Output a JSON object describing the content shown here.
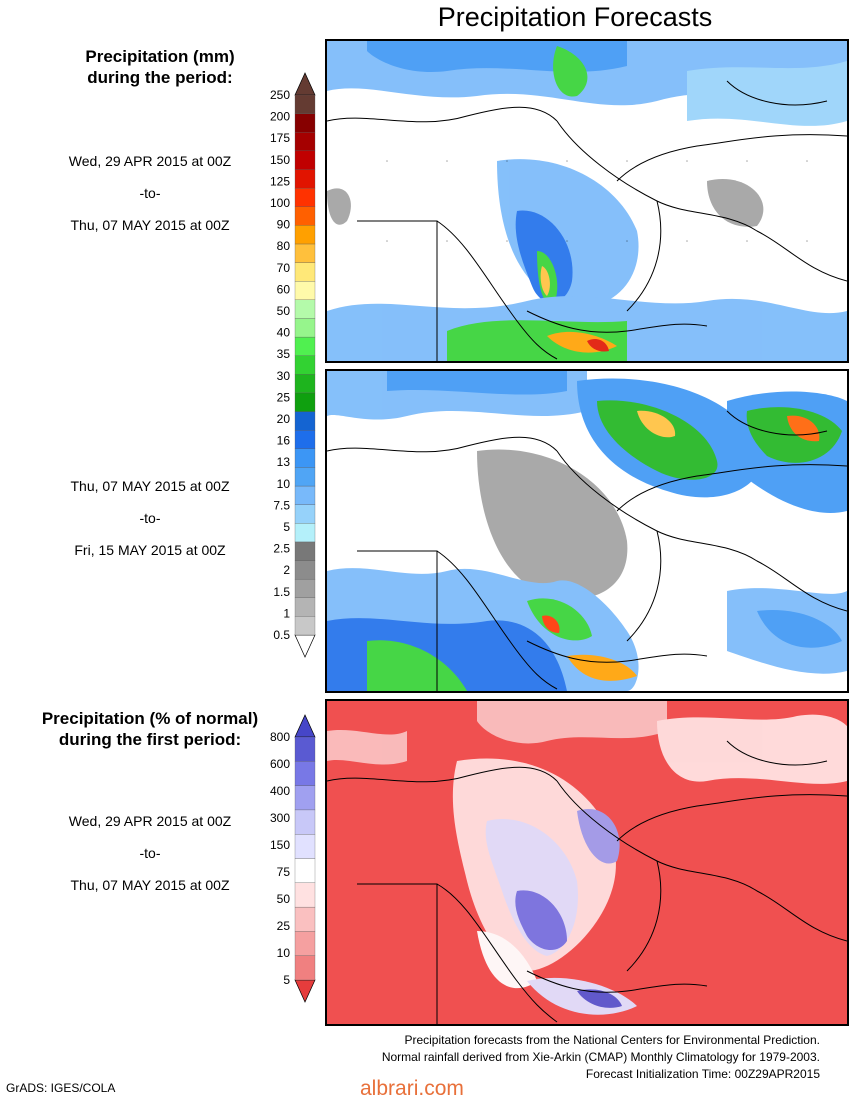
{
  "title": "Precipitation Forecasts",
  "section_mm": {
    "heading": [
      "Precipitation (mm)",
      "during the period:"
    ],
    "period1": [
      "Wed, 29 APR 2015 at 00Z",
      "-to-",
      "Thu, 07 MAY 2015 at 00Z"
    ],
    "period2": [
      "Thu, 07 MAY 2015 at 00Z",
      "-to-",
      "Fri, 15 MAY 2015 at 00Z"
    ],
    "legend_ticks": [
      "0.5",
      "1",
      "1.5",
      "2",
      "2.5",
      "5",
      "7.5",
      "10",
      "13",
      "16",
      "20",
      "25",
      "30",
      "35",
      "40",
      "50",
      "60",
      "70",
      "80",
      "90",
      "100",
      "125",
      "150",
      "175",
      "200",
      "250"
    ],
    "legend_colors": [
      "#c8c8c8",
      "#b4b4b4",
      "#a0a0a0",
      "#8c8c8c",
      "#787878",
      "#b4f0fa",
      "#96d2fa",
      "#78b9fa",
      "#50a5f5",
      "#3c96f5",
      "#1e6eeb",
      "#1464d2",
      "#0fa00f",
      "#1eb41e",
      "#32d232",
      "#50f050",
      "#96f58c",
      "#b4faaa",
      "#fffaaa",
      "#ffe878",
      "#ffc03c",
      "#ffa000",
      "#ff6000",
      "#ff3200",
      "#e11400",
      "#c00000",
      "#a50000",
      "#870000",
      "#643b32"
    ],
    "top_arrow_color": "#643b32",
    "bottom_arrow_color": "#ffffff"
  },
  "section_pct": {
    "heading": [
      "Precipitation (% of normal)",
      "during the first period:"
    ],
    "period": [
      "Wed, 29 APR 2015 at 00Z",
      "-to-",
      "Thu, 07 MAY 2015 at 00Z"
    ],
    "legend_ticks": [
      "5",
      "10",
      "25",
      "50",
      "75",
      "150",
      "300",
      "400",
      "600",
      "800"
    ],
    "legend_colors": [
      "#f08080",
      "#f5a0a0",
      "#fac0c0",
      "#ffe1e1",
      "#ffffff",
      "#e1e1ff",
      "#c8c8f8",
      "#a0a0f0",
      "#7878e6",
      "#5a5ad2"
    ],
    "top_arrow_color": "#4646c8",
    "bottom_arrow_color": "#e63c3c"
  },
  "footer": {
    "lines": [
      "Precipitation forecasts from the National Centers for Environmental Prediction.",
      "Normal rainfall derived from Xie-Arkin (CMAP) Monthly Climatology for 1979-2003.",
      "Forecast Initialization Time: 00Z29APR2015"
    ],
    "credit": "GrADS: IGES/COLA",
    "watermark": "albrari.com"
  }
}
